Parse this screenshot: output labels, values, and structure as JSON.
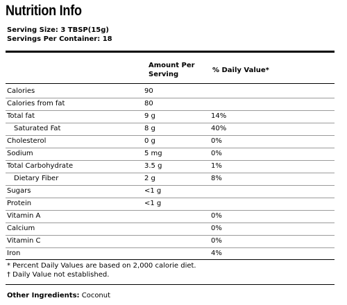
{
  "title": "Nutrition Info",
  "serving": {
    "size": "Serving Size: 3 TBSP(15g)",
    "per_container": "Servings Per Container: 18"
  },
  "table": {
    "header": {
      "amount_line1": "Amount Per",
      "amount_line2": "Serving",
      "daily_value": "% Daily Value*"
    },
    "rows": [
      {
        "name": "Calories",
        "amount": "90",
        "pct": "",
        "indent": false
      },
      {
        "name": "Calories from fat",
        "amount": "80",
        "pct": "",
        "indent": false
      },
      {
        "name": "Total fat",
        "amount": "9 g",
        "pct": "14%",
        "indent": false
      },
      {
        "name": "Saturated Fat",
        "amount": "8 g",
        "pct": "40%",
        "indent": true
      },
      {
        "name": "Cholesterol",
        "amount": "0 g",
        "pct": "0%",
        "indent": false
      },
      {
        "name": "Sodium",
        "amount": "5 mg",
        "pct": "0%",
        "indent": false
      },
      {
        "name": "Total Carbohydrate",
        "amount": "3.5 g",
        "pct": "1%",
        "indent": false
      },
      {
        "name": "Dietary Fiber",
        "amount": "2 g",
        "pct": "8%",
        "indent": true
      },
      {
        "name": "Sugars",
        "amount": "<1 g",
        "pct": "",
        "indent": false
      },
      {
        "name": "Protein",
        "amount": "<1 g",
        "pct": "",
        "indent": false
      },
      {
        "name": "Vitamin A",
        "amount": "",
        "pct": "0%",
        "indent": false
      },
      {
        "name": "Calcium",
        "amount": "",
        "pct": "0%",
        "indent": false
      },
      {
        "name": "Vitamin C",
        "amount": "",
        "pct": "0%",
        "indent": false
      },
      {
        "name": "Iron",
        "amount": "",
        "pct": "4%",
        "indent": false
      }
    ]
  },
  "footnotes": {
    "daily_values": "* Percent Daily Values are based on 2,000 calorie diet.",
    "not_established": "† Daily Value not established."
  },
  "other_ingredients": {
    "label": "Other Ingredients:",
    "value": "Coconut"
  }
}
